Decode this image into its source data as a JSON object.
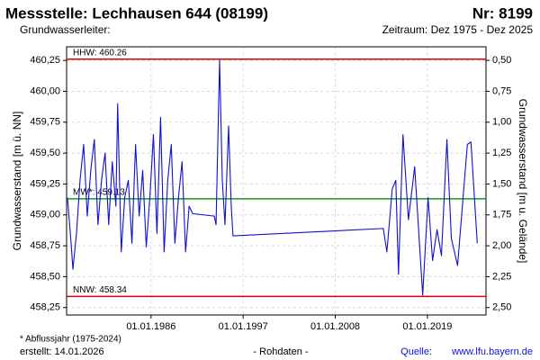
{
  "chart_data": {
    "type": "line",
    "title": "Messstelle: Lechhausen 644 (08199)",
    "title_right": "Nr: 8199",
    "subtitle": "Grundwasserleiter:",
    "subtitle_right": "Zeitraum: Dez 1975 - Dez 2025",
    "y_label": "Grundwasserstand [m ü. NN]",
    "y2_label": "Grundwasserstand [m u. Gelände]",
    "xlim": [
      "1975-12-01",
      "2025-12-31"
    ],
    "xticks": [
      {
        "value": "1986-01-01",
        "label": "01.01.1986"
      },
      {
        "value": "1997-01-01",
        "label": "01.01.1997"
      },
      {
        "value": "2008-01-01",
        "label": "01.01.2008"
      },
      {
        "value": "2019-01-01",
        "label": "01.01.2019"
      }
    ],
    "ylim": [
      458.19,
      460.36
    ],
    "yticks": [
      {
        "value": 458.25,
        "label": "458,25"
      },
      {
        "value": 458.5,
        "label": "458,50"
      },
      {
        "value": 458.75,
        "label": "458,75"
      },
      {
        "value": 459,
        "label": "459,00"
      },
      {
        "value": 459.25,
        "label": "459,25"
      },
      {
        "value": 459.5,
        "label": "459,50"
      },
      {
        "value": 459.75,
        "label": "459,75"
      },
      {
        "value": 460,
        "label": "460,00"
      },
      {
        "value": 460.25,
        "label": "460,25"
      }
    ],
    "y2lim": [
      2.56,
      0.39
    ],
    "y2ticks": [
      {
        "value": 0.5,
        "label": "0,50"
      },
      {
        "value": 0.75,
        "label": "0,75"
      },
      {
        "value": 1,
        "label": "1,00"
      },
      {
        "value": 1.25,
        "label": "1,25"
      },
      {
        "value": 1.5,
        "label": "1,50"
      },
      {
        "value": 1.75,
        "label": "1,75"
      },
      {
        "value": 2,
        "label": "2,00"
      },
      {
        "value": 2.25,
        "label": "2,25"
      },
      {
        "value": 2.5,
        "label": "2,50"
      }
    ],
    "grid": true,
    "reference_lines": [
      {
        "label": "HHW: 460.26",
        "value": 460.26,
        "color": "#e00000"
      },
      {
        "label": "MW*: 459.13",
        "value": 459.13,
        "color": "#1a9a1a"
      },
      {
        "label": "NNW: 458.34",
        "value": 458.34,
        "color": "#e00000"
      }
    ],
    "series": [
      {
        "color": "#1010d0",
        "x": [
          "1976-01-10",
          "1976-06-15",
          "1976-09-01",
          "1977-02-05",
          "1977-07-10",
          "1977-12-15",
          "1978-05-20",
          "1978-10-20",
          "1979-03-25",
          "1979-08-30",
          "1980-02-01",
          "1980-07-05",
          "1980-12-10",
          "1981-05-15",
          "1981-10-20",
          "1982-01-05",
          "1982-06-10",
          "1982-11-10",
          "1983-04-15",
          "1983-09-20",
          "1984-02-25",
          "1984-07-30",
          "1985-01-01",
          "1985-06-05",
          "1985-11-10",
          "1986-04-15",
          "1986-09-15",
          "1987-02-20",
          "1987-07-25",
          "1987-12-30",
          "1988-06-01",
          "1988-11-05",
          "1989-04-10",
          "1989-09-15",
          "1990-02-15",
          "1990-07-20",
          "1990-12-25",
          "1993-07-20",
          "1993-10-05",
          "1994-03-10",
          "1994-07-05",
          "1994-10-30",
          "1995-04-05",
          "1995-07-30",
          "1995-10-15",
          "2013-09-25",
          "2014-03-01",
          "2014-10-20",
          "2015-03-25",
          "2015-07-20",
          "2016-02-01",
          "2016-09-25",
          "2017-06-25",
          "2018-06-10",
          "2019-01-30",
          "2019-08-15",
          "2020-02-25",
          "2020-09-05",
          "2021-05-01",
          "2021-11-10",
          "2022-08-10",
          "2023-10-10",
          "2024-03-15",
          "2024-12-15"
        ],
        "values": [
          459.14,
          458.77,
          458.56,
          458.85,
          459.28,
          459.57,
          458.99,
          459.36,
          459.61,
          458.92,
          459.28,
          459.5,
          458.92,
          459.43,
          459.07,
          459.9,
          458.7,
          459.14,
          459.28,
          458.77,
          459.57,
          458.99,
          459.36,
          458.74,
          459.14,
          459.65,
          458.85,
          459.79,
          458.7,
          459.28,
          459.57,
          458.77,
          459.14,
          459.43,
          458.7,
          459.07,
          459.01,
          458.99,
          458.92,
          460.25,
          459.28,
          458.92,
          459.72,
          459.07,
          458.83,
          458.89,
          458.7,
          459.21,
          459.28,
          458.52,
          459.65,
          458.96,
          459.39,
          458.35,
          459.14,
          458.63,
          458.88,
          458.67,
          459.61,
          458.81,
          458.59,
          459.57,
          459.59,
          458.77
        ]
      }
    ],
    "footnote": "* Abflussjahr (1975-2024)",
    "created": "erstellt: 14.01.2026",
    "data_note": "- Rohdaten -",
    "source_label": "Quelle:",
    "source_link": "www.lfu.bayern.de"
  }
}
